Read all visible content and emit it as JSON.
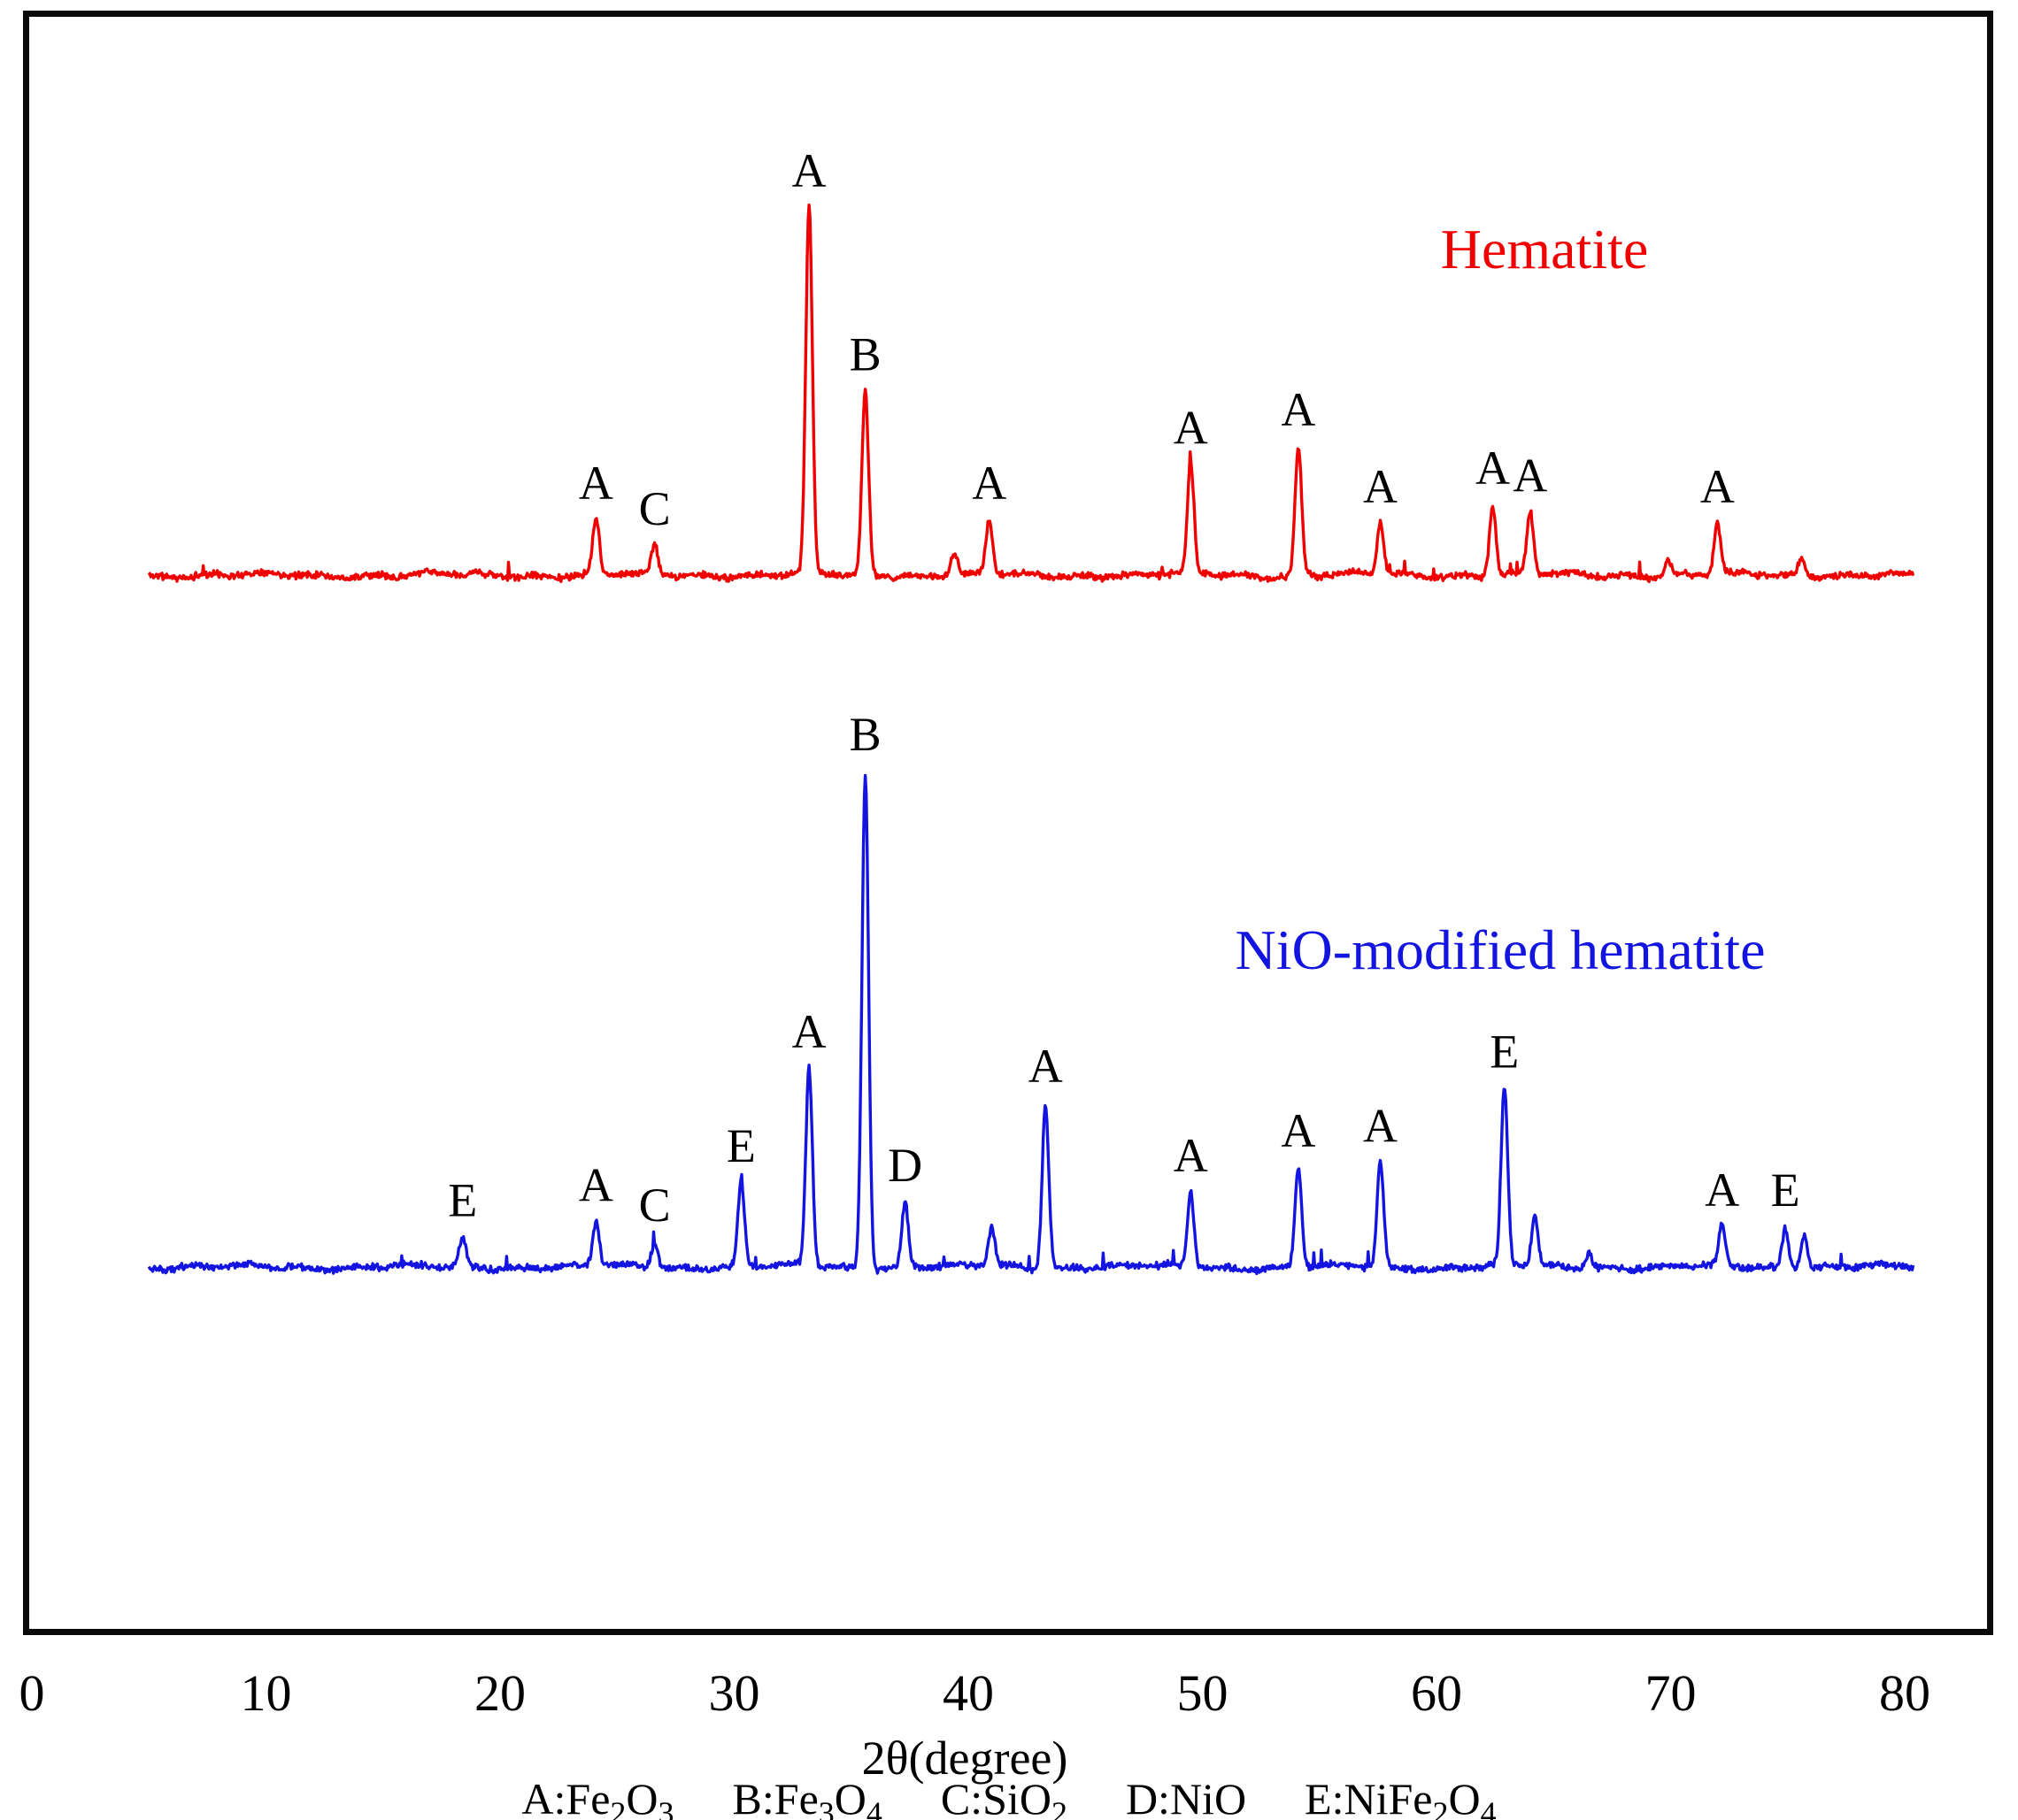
{
  "figure": {
    "background": "#ffffff",
    "frame_color": "#0a0a0a"
  },
  "chart_data": {
    "type": "line",
    "title": "",
    "xlabel": "2θ(degree)",
    "ylabel": "",
    "xlim": [
      0,
      80
    ],
    "x_ticks": [
      "0",
      "10",
      "20",
      "30",
      "40",
      "50",
      "60",
      "70",
      "80"
    ],
    "grid": false,
    "peak_label_color": "#000000",
    "series": [
      {
        "name": "Hematite",
        "color": "#f00000",
        "peaks": [
          {
            "two_theta": 24.1,
            "intensity": 15,
            "label": "A"
          },
          {
            "two_theta": 26.6,
            "intensity": 8,
            "label": "C"
          },
          {
            "two_theta": 33.2,
            "intensity": 100,
            "label": "A"
          },
          {
            "two_theta": 35.6,
            "intensity": 50,
            "label": "B"
          },
          {
            "two_theta": 39.4,
            "intensity": 6,
            "label": ""
          },
          {
            "two_theta": 40.9,
            "intensity": 15,
            "label": "A"
          },
          {
            "two_theta": 49.5,
            "intensity": 30,
            "label": "A"
          },
          {
            "two_theta": 54.1,
            "intensity": 35,
            "label": "A"
          },
          {
            "two_theta": 57.6,
            "intensity": 14,
            "label": "A"
          },
          {
            "two_theta": 62.4,
            "intensity": 19,
            "label": "A"
          },
          {
            "two_theta": 64.0,
            "intensity": 17,
            "label": "A"
          },
          {
            "two_theta": 69.9,
            "intensity": 4,
            "label": ""
          },
          {
            "two_theta": 72.0,
            "intensity": 14,
            "label": "A"
          },
          {
            "two_theta": 75.6,
            "intensity": 5,
            "label": ""
          }
        ]
      },
      {
        "name": "NiO-modified hematite",
        "color": "#1414e0",
        "peaks": [
          {
            "two_theta": 18.4,
            "intensity": 6,
            "label": "E"
          },
          {
            "two_theta": 24.1,
            "intensity": 9,
            "label": "A"
          },
          {
            "two_theta": 26.6,
            "intensity": 5,
            "label": "C"
          },
          {
            "two_theta": 30.3,
            "intensity": 17,
            "label": "E"
          },
          {
            "two_theta": 33.2,
            "intensity": 40,
            "label": "A"
          },
          {
            "two_theta": 35.6,
            "intensity": 100,
            "label": "B"
          },
          {
            "two_theta": 37.3,
            "intensity": 13,
            "label": "D"
          },
          {
            "two_theta": 41.0,
            "intensity": 8,
            "label": ""
          },
          {
            "two_theta": 43.3,
            "intensity": 33,
            "label": "A"
          },
          {
            "two_theta": 49.5,
            "intensity": 15,
            "label": "A"
          },
          {
            "two_theta": 54.1,
            "intensity": 20,
            "label": "A"
          },
          {
            "two_theta": 57.6,
            "intensity": 21,
            "label": "A"
          },
          {
            "two_theta": 62.9,
            "intensity": 36,
            "label": "E"
          },
          {
            "two_theta": 64.2,
            "intensity": 10,
            "label": ""
          },
          {
            "two_theta": 66.5,
            "intensity": 3,
            "label": ""
          },
          {
            "two_theta": 72.2,
            "intensity": 8,
            "label": "A"
          },
          {
            "two_theta": 74.9,
            "intensity": 8,
            "label": "E"
          },
          {
            "two_theta": 75.7,
            "intensity": 7,
            "label": ""
          }
        ]
      }
    ],
    "phase_legend": [
      {
        "key": "A",
        "parts": [
          {
            "t": "Fe"
          },
          {
            "t": "2",
            "sub": true
          },
          {
            "t": "O"
          },
          {
            "t": "3",
            "sub": true
          }
        ]
      },
      {
        "key": "B",
        "parts": [
          {
            "t": "Fe"
          },
          {
            "t": "3",
            "sub": true
          },
          {
            "t": "O"
          },
          {
            "t": "4",
            "sub": true
          }
        ]
      },
      {
        "key": "C",
        "parts": [
          {
            "t": "SiO"
          },
          {
            "t": "2",
            "sub": true
          }
        ]
      },
      {
        "key": "D",
        "parts": [
          {
            "t": "NiO"
          }
        ]
      },
      {
        "key": "E",
        "parts": [
          {
            "t": "NiFe"
          },
          {
            "t": "2",
            "sub": true
          },
          {
            "t": "O"
          },
          {
            "t": "4",
            "sub": true
          }
        ]
      }
    ]
  }
}
